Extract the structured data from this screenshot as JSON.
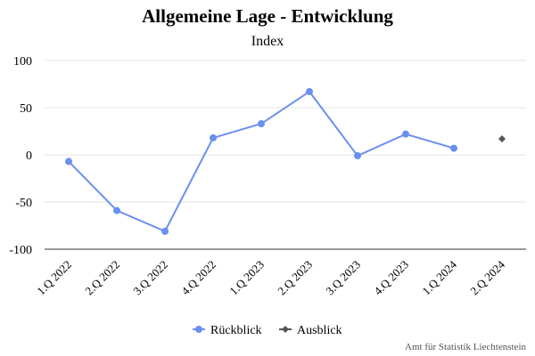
{
  "title": "Allgemeine Lage - Entwicklung",
  "subtitle": "Index",
  "credit": "Amt für Statistik Liechtenstein",
  "chart_data": {
    "type": "line",
    "categories": [
      "1.Q 2022",
      "2.Q 2022",
      "3.Q 2022",
      "4.Q 2022",
      "1.Q 2023",
      "2.Q 2023",
      "3.Q 2023",
      "4.Q 2023",
      "1.Q 2024",
      "2.Q 2024"
    ],
    "series": [
      {
        "name": "Rückblick",
        "color": "#6b8ff0",
        "marker": "circle",
        "values": [
          -7,
          -59,
          -81,
          18,
          33,
          67,
          -1,
          22,
          7,
          null
        ]
      },
      {
        "name": "Ausblick",
        "color": "#555555",
        "marker": "diamond",
        "values": [
          null,
          null,
          null,
          null,
          null,
          null,
          null,
          null,
          null,
          17
        ]
      }
    ],
    "yticks": [
      100,
      50,
      0,
      -50,
      -100
    ],
    "ylim": [
      -100,
      100
    ],
    "grid": true,
    "legend_position": "bottom"
  }
}
